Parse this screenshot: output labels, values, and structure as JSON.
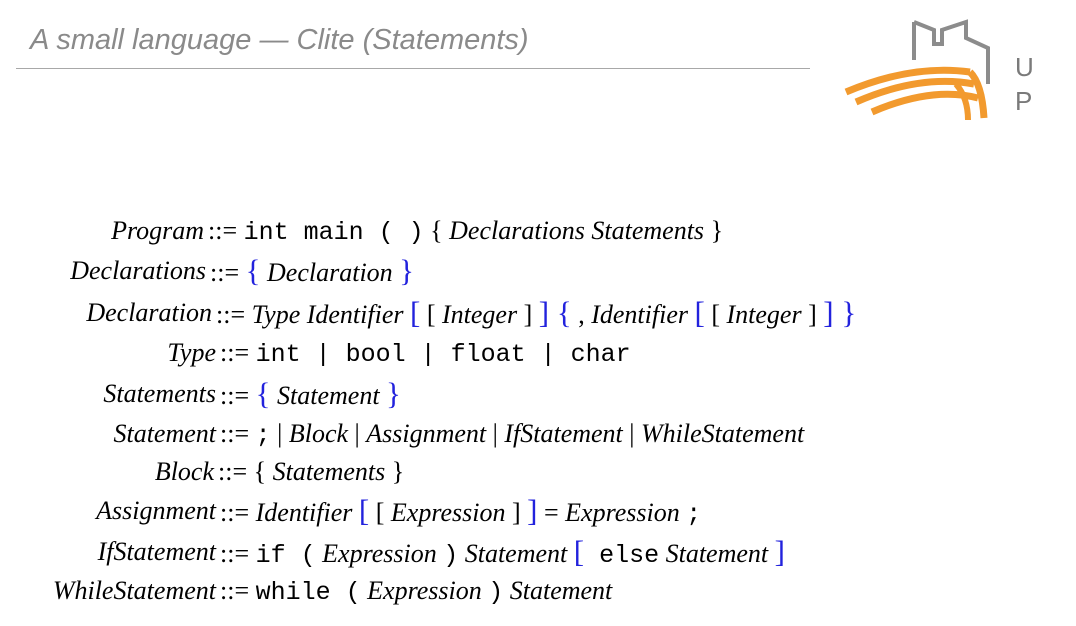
{
  "slide": {
    "title": "A small language — Clite (Statements)"
  },
  "logo": {
    "letter_u": "U",
    "letter_p": "P"
  },
  "grammar": {
    "define_symbol": "::=",
    "rules": [
      {
        "lhs": "Program",
        "parts": [
          {
            "k": "mono",
            "t": "int main ( )"
          },
          {
            "k": "plain",
            "t": " { "
          },
          {
            "k": "nt",
            "t": "Declarations Statements"
          },
          {
            "k": "plain",
            "t": " }"
          }
        ]
      },
      {
        "lhs": "Declarations",
        "parts": [
          {
            "k": "meta",
            "t": "{"
          },
          {
            "k": "nt",
            "t": " Declaration "
          },
          {
            "k": "meta",
            "t": "}"
          }
        ]
      },
      {
        "lhs": "Declaration",
        "parts": [
          {
            "k": "nt",
            "t": "Type Identifier "
          },
          {
            "k": "meta",
            "t": "["
          },
          {
            "k": "plain",
            "t": " [ "
          },
          {
            "k": "nt",
            "t": "Integer"
          },
          {
            "k": "plain",
            "t": " ] "
          },
          {
            "k": "meta",
            "t": "]"
          },
          {
            "k": "meta",
            "t": " {"
          },
          {
            "k": "plain",
            "t": " , "
          },
          {
            "k": "nt",
            "t": "Identifier "
          },
          {
            "k": "meta",
            "t": "["
          },
          {
            "k": "plain",
            "t": " [ "
          },
          {
            "k": "nt",
            "t": "Integer"
          },
          {
            "k": "plain",
            "t": " ] "
          },
          {
            "k": "meta",
            "t": "]"
          },
          {
            "k": "meta",
            "t": " }"
          }
        ]
      },
      {
        "lhs": "Type",
        "parts": [
          {
            "k": "mono",
            "t": "int | bool | float | char"
          }
        ]
      },
      {
        "lhs": "Statements",
        "parts": [
          {
            "k": "meta",
            "t": "{"
          },
          {
            "k": "nt",
            "t": " Statement "
          },
          {
            "k": "meta",
            "t": "}"
          }
        ]
      },
      {
        "lhs": "Statement",
        "parts": [
          {
            "k": "mono",
            "t": ";"
          },
          {
            "k": "plain",
            "t": " | "
          },
          {
            "k": "nt",
            "t": "Block"
          },
          {
            "k": "plain",
            "t": " | "
          },
          {
            "k": "nt",
            "t": "Assignment"
          },
          {
            "k": "plain",
            "t": " | "
          },
          {
            "k": "nt",
            "t": "IfStatement"
          },
          {
            "k": "plain",
            "t": " | "
          },
          {
            "k": "nt",
            "t": "WhileStatement"
          }
        ]
      },
      {
        "lhs": "Block",
        "parts": [
          {
            "k": "plain",
            "t": "{ "
          },
          {
            "k": "nt",
            "t": "Statements"
          },
          {
            "k": "plain",
            "t": " }"
          }
        ]
      },
      {
        "lhs": "Assignment",
        "parts": [
          {
            "k": "nt",
            "t": "Identifier "
          },
          {
            "k": "meta",
            "t": "["
          },
          {
            "k": "plain",
            "t": " [ "
          },
          {
            "k": "nt",
            "t": "Expression"
          },
          {
            "k": "plain",
            "t": " ] "
          },
          {
            "k": "meta",
            "t": "]"
          },
          {
            "k": "plain",
            "t": " = "
          },
          {
            "k": "nt",
            "t": "Expression "
          },
          {
            "k": "mono",
            "t": ";"
          }
        ]
      },
      {
        "lhs": "IfStatement",
        "parts": [
          {
            "k": "mono",
            "t": "if ("
          },
          {
            "k": "nt",
            "t": " Expression "
          },
          {
            "k": "mono",
            "t": ")"
          },
          {
            "k": "nt",
            "t": " Statement "
          },
          {
            "k": "meta",
            "t": "["
          },
          {
            "k": "mono",
            "t": " else"
          },
          {
            "k": "nt",
            "t": " Statement "
          },
          {
            "k": "meta",
            "t": "]"
          }
        ]
      },
      {
        "lhs": "WhileStatement",
        "parts": [
          {
            "k": "mono",
            "t": "while ("
          },
          {
            "k": "nt",
            "t": " Expression "
          },
          {
            "k": "mono",
            "t": ")"
          },
          {
            "k": "nt",
            "t": " Statement"
          }
        ]
      }
    ]
  },
  "colors": {
    "title": "#8a8a8a",
    "meta_symbols": "#2222dd",
    "logo_orange": "#f29a2e",
    "logo_gray": "#8c8c8c"
  }
}
